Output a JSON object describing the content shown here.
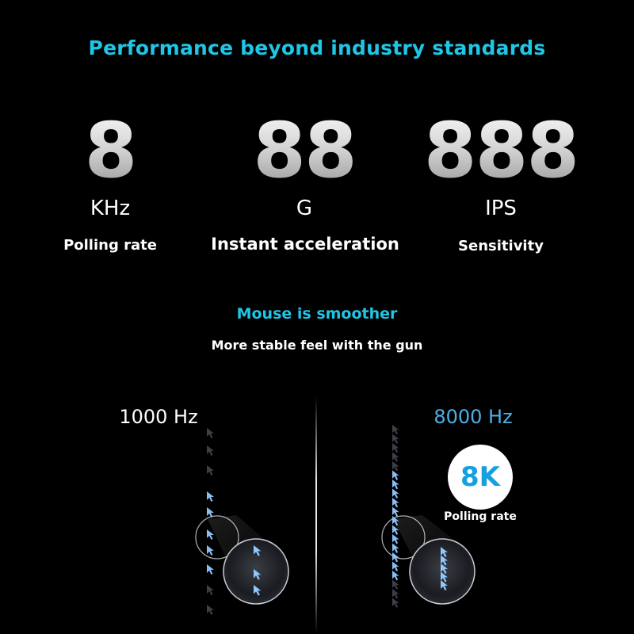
{
  "headline": "Performance beyond industry standards",
  "specs": [
    {
      "value": "8",
      "unit": "KHz",
      "caption": "Polling rate"
    },
    {
      "value": "88",
      "unit": "G",
      "caption": "Instant acceleration"
    },
    {
      "value": "888",
      "unit": "IPS",
      "caption": "Sensitivity"
    }
  ],
  "smooth": {
    "title": "Mouse is smoother",
    "subtitle": "More stable feel with the gun"
  },
  "comparison": {
    "left_label": "1000 Hz",
    "right_label": "8000 Hz",
    "badge": "8K",
    "badge_caption": "Polling rate"
  },
  "colors": {
    "accent": "#1fc6e6",
    "background": "#000000",
    "badge_text": "#17a0e0",
    "cursor_blue": "#8fc8ff"
  },
  "icons": [
    "cursor-arrow-icon"
  ]
}
